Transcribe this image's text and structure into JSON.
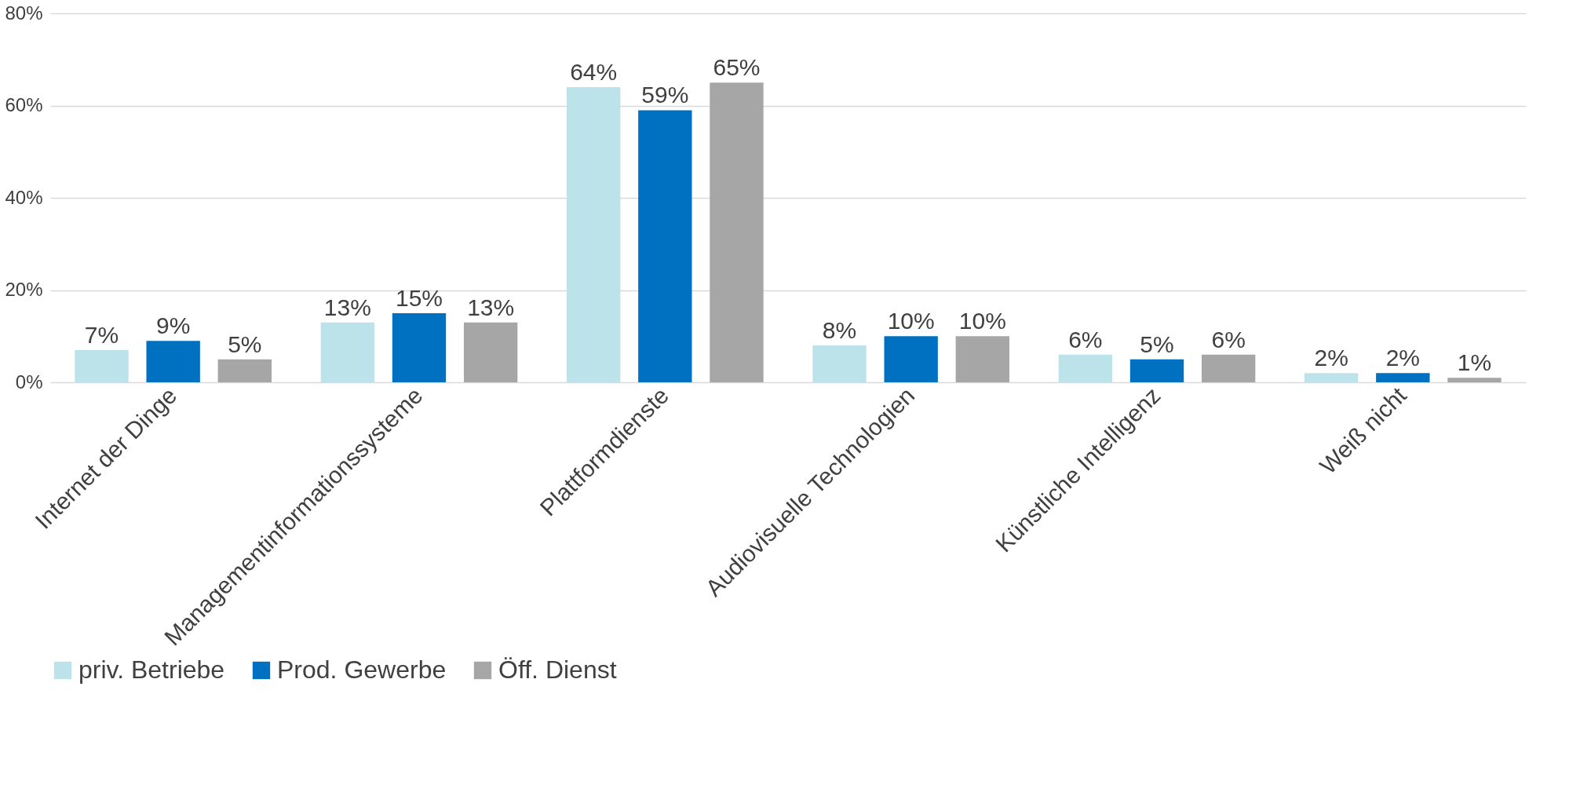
{
  "chart_data": {
    "type": "bar",
    "categories": [
      "Internet der Dinge",
      "Managementinformationssysteme",
      "Plattformdienste",
      "Audiovisuelle Technologien",
      "Künstliche Intelligenz",
      "Weiß nicht"
    ],
    "series": [
      {
        "name": "priv. Betriebe",
        "color": "#bde3ea",
        "values": [
          7,
          13,
          64,
          8,
          6,
          2
        ],
        "value_labels": [
          "7%",
          "13%",
          "64%",
          "8%",
          "6%",
          "2%"
        ]
      },
      {
        "name": "Prod. Gewerbe",
        "color": "#0070c0",
        "values": [
          9,
          15,
          59,
          10,
          5,
          2
        ],
        "value_labels": [
          "9%",
          "15%",
          "59%",
          "10%",
          "5%",
          "2%"
        ]
      },
      {
        "name": "Öff. Dienst",
        "color": "#a6a6a6",
        "values": [
          5,
          13,
          65,
          10,
          6,
          1
        ],
        "value_labels": [
          "5%",
          "13%",
          "65%",
          "10%",
          "6%",
          "1%"
        ]
      }
    ],
    "ylim": [
      0,
      80
    ],
    "yticks": [
      {
        "value": 0,
        "label": "0%"
      },
      {
        "value": 20,
        "label": "20%"
      },
      {
        "value": 40,
        "label": "40%"
      },
      {
        "value": 60,
        "label": "60%"
      },
      {
        "value": 80,
        "label": "80%"
      }
    ],
    "grid": "y",
    "legend": "bottom"
  }
}
